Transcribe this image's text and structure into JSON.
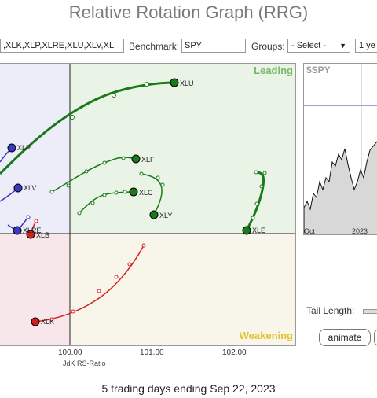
{
  "title": "Relative Rotation Graph (RRG)",
  "toolbar": {
    "symbols_value": ",XLK,XLP,XLRE,XLU,XLV,XL",
    "benchmark_label": "Benchmark:",
    "benchmark_value": "SPY",
    "groups_label": "Groups:",
    "groups_value": "- Select -",
    "period_value": "1 ye"
  },
  "quadrants": {
    "leading": "Leading",
    "weakening": "Weakening",
    "colors": {
      "leading": "#e9f3e6",
      "weakening": "#f8f5ea",
      "lagging": "#f7e6ea",
      "improving": "#ecedf8"
    },
    "label_colors": {
      "leading": "#77b86a",
      "weakening": "#e4c22e"
    }
  },
  "x_axis": {
    "title": "JdK RS-Ratio",
    "ticks": [
      "100.00",
      "101.00",
      "102.00"
    ]
  },
  "sectors": [
    {
      "symbol": "XLU",
      "color": "#1a7a1a"
    },
    {
      "symbol": "XLF",
      "color": "#1a7a1a"
    },
    {
      "symbol": "XLC",
      "color": "#1a7a1a"
    },
    {
      "symbol": "XLY",
      "color": "#1a7a1a"
    },
    {
      "symbol": "XLE",
      "color": "#1a7a1a"
    },
    {
      "symbol": "XLK",
      "color": "#d62020"
    },
    {
      "symbol": "XLB",
      "color": "#d62020"
    },
    {
      "symbol": "XLP",
      "color": "#3a3ac0"
    },
    {
      "symbol": "XLV",
      "color": "#3a3ac0"
    },
    {
      "symbol": "XLRE",
      "color": "#3a3ac0"
    }
  ],
  "spy_chart": {
    "label": "$SPY",
    "x_labels": [
      "Oct",
      "2023"
    ]
  },
  "controls": {
    "tail_length_label": "Tail Length:",
    "animate_label": "animate"
  },
  "footer": "5 trading days ending Sep 22, 2023"
}
